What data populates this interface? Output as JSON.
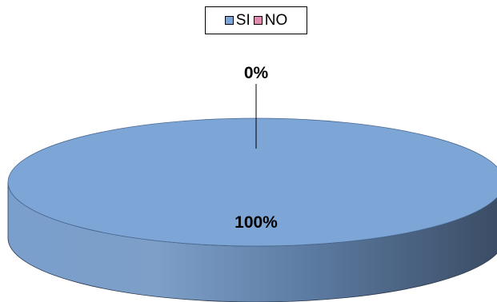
{
  "chart_data": {
    "type": "pie",
    "title": "",
    "categories": [
      "SI",
      "NO"
    ],
    "values": [
      100,
      0
    ],
    "data_labels": [
      "100%",
      "0%"
    ],
    "colors": [
      "#7da5d6",
      "#e08bb0"
    ],
    "legend": {
      "placement": "top",
      "entries": [
        "SI",
        "NO"
      ]
    },
    "three_d": true
  }
}
